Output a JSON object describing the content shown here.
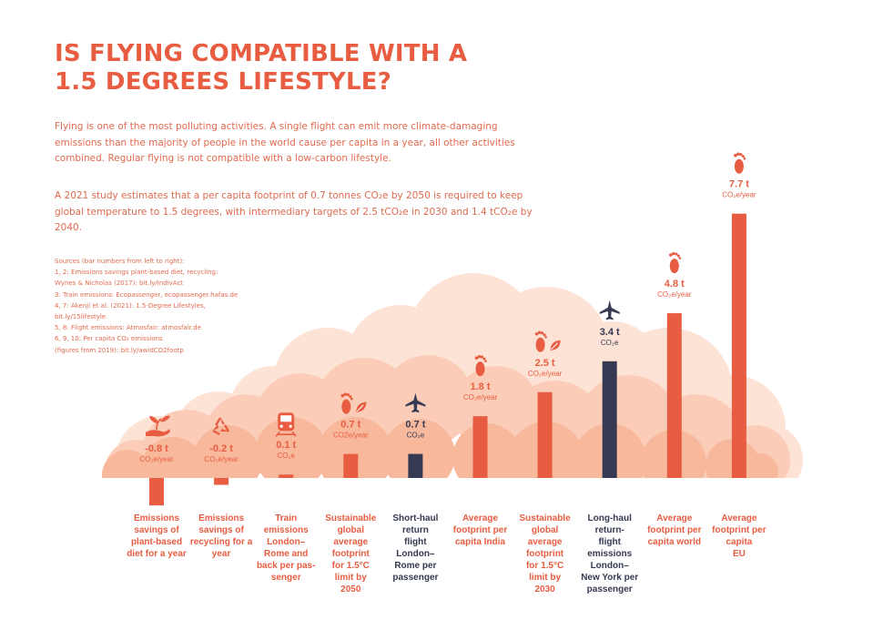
{
  "header": {
    "title_lines": [
      "IS FLYING COMPATIBLE WITH A",
      "1.5 DEGREES LIFESTYLE?"
    ]
  },
  "intro": {
    "paragraph1_lines": [
      "Flying is one of the most polluting activities. A single flight can emit more climate-damaging",
      "emissions than the majority of people in the world cause per capita in a year, all other activities",
      "combined. Regular flying is not compatible with a low-carbon lifestyle."
    ],
    "paragraph2_lines": [
      "A 2021 study estimates that a per capita footprint of 0.7 tonnes CO₂e by 2050 is required to keep",
      "global temperature to 1.5 degrees, with intermediary targets of 2.5 tCO₂e in 2030 and 1.4 tCO₂e by",
      "2040."
    ]
  },
  "sources": {
    "lines": [
      "Sources (bar numbers from left to right):",
      "1, 2: Emissions savings plant-based diet, recycling:",
      "Wynes & Nicholas (2017): bit.ly/IndivAct",
      "3: Train emissions: Ecopassenger, ecopassenger.hafas.de",
      "4, 7: Akenji et al. (2021): 1.5-Degree Lifestyles,",
      "bit.ly/15lifestyle",
      "5, 8: Flight emissions: Atmosfair: atmosfair.de",
      "6, 9, 10: Per capita CO₂ emissions",
      "(figures from 2019): bit.ly/awidCO2footp"
    ]
  },
  "colors": {
    "accent": "#e85d41",
    "flight": "#353a52",
    "cloud_light": "#fde3d6",
    "cloud_mid": "#fbcdb8",
    "cloud_dark": "#f7b89c"
  },
  "chart_data": {
    "type": "bar",
    "unit": "t CO₂e",
    "ylim": [
      -0.8,
      7.7
    ],
    "bars": [
      {
        "value": -0.8,
        "value_label": "-0.8 t",
        "unit_label": "CO₂e/year",
        "icon": "hand-plant-icon",
        "kind": "accent",
        "category_lines": [
          "Emissions",
          "savings of",
          "plant-based",
          "diet for a year"
        ]
      },
      {
        "value": -0.2,
        "value_label": "-0.2 t",
        "unit_label": "CO₂e/year",
        "icon": "recycle-icon",
        "kind": "accent",
        "category_lines": [
          "Emissions",
          "savings of",
          "recycling for a",
          "year"
        ]
      },
      {
        "value": 0.1,
        "value_label": "0.1 t",
        "unit_label": "CO₂e",
        "icon": "train-icon",
        "kind": "accent",
        "category_lines": [
          "Train",
          "emissions",
          "London–",
          "Rome and",
          "back per pas-",
          "senger"
        ]
      },
      {
        "value": 0.7,
        "value_label": "0.7 t",
        "unit_label": "CO2e/year",
        "icon": "footprint-leaf-icon",
        "kind": "accent",
        "category_lines": [
          "Sustainable",
          "global",
          "average",
          "footprint",
          "for 1.5°C",
          "limit by",
          "2050"
        ]
      },
      {
        "value": 0.7,
        "value_label": "0.7 t",
        "unit_label": "CO₂e",
        "icon": "airplane-icon",
        "kind": "flight",
        "category_lines": [
          "Short-haul",
          "return",
          "flight",
          "London–",
          "Rome per",
          "passenger"
        ]
      },
      {
        "value": 1.8,
        "value_label": "1.8 t",
        "unit_label": "CO₂e/year",
        "icon": "footprint-icon",
        "kind": "accent",
        "category_lines": [
          "Average",
          "footprint per",
          "capita India"
        ]
      },
      {
        "value": 2.5,
        "value_label": "2.5 t",
        "unit_label": "CO₂e/year",
        "icon": "footprint-leaf-icon",
        "kind": "accent",
        "category_lines": [
          "Sustainable",
          "global",
          "average",
          "footprint",
          "for 1.5°C",
          "limit by",
          "2030"
        ]
      },
      {
        "value": 3.4,
        "value_label": "3.4 t",
        "unit_label": "CO₂e",
        "icon": "airplane-icon",
        "kind": "flight",
        "category_lines": [
          "Long-haul",
          "return-",
          "flight",
          "emissions",
          "London–",
          "New York per",
          "passenger"
        ]
      },
      {
        "value": 4.8,
        "value_label": "4.8 t",
        "unit_label": "CO₂e/year",
        "icon": "footprint-icon",
        "kind": "accent",
        "category_lines": [
          "Average",
          "footprint per",
          "capita world"
        ]
      },
      {
        "value": 7.7,
        "value_label": "7.7 t",
        "unit_label": "CO₂e/year",
        "icon": "footprint-icon",
        "kind": "accent",
        "category_lines": [
          "Average",
          "footprint per",
          "capita",
          "EU"
        ]
      }
    ]
  }
}
